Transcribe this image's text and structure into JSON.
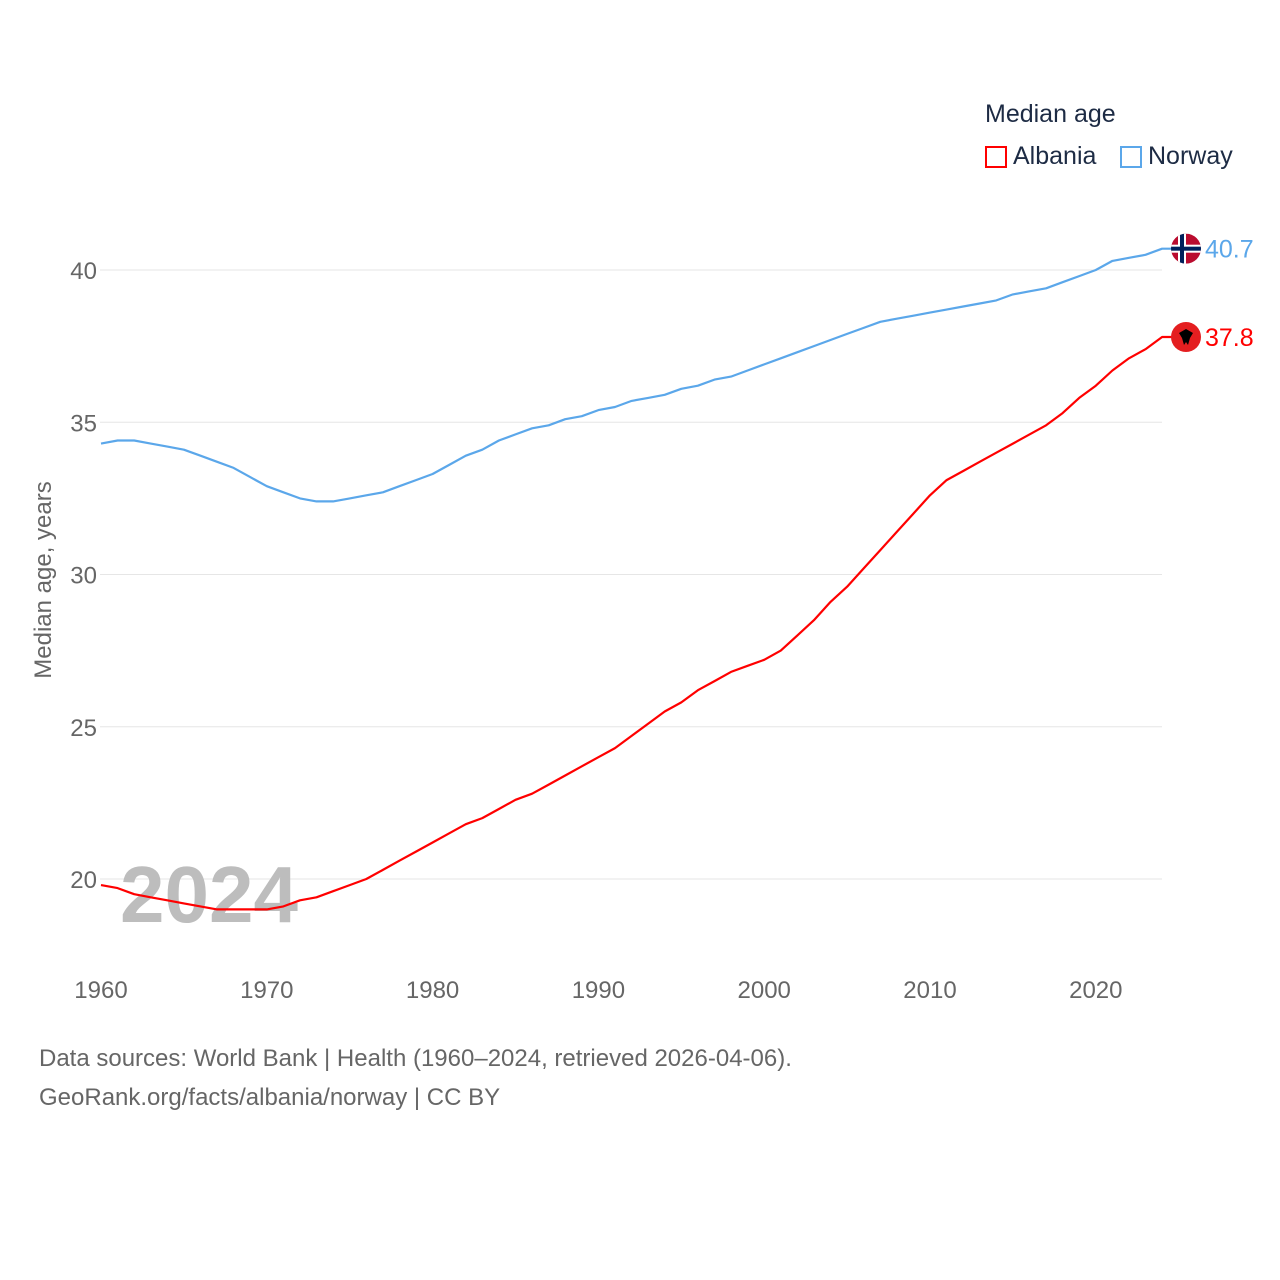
{
  "chart_data": {
    "type": "line",
    "title": "",
    "ylabel": "Median age, years",
    "xlabel": "",
    "xlim": [
      1960,
      2024
    ],
    "ylim": [
      17.5,
      41.5
    ],
    "grid": true,
    "x_ticks": [
      "1960",
      "1970",
      "1980",
      "1990",
      "2000",
      "2010",
      "2020"
    ],
    "y_ticks": [
      "20",
      "25",
      "30",
      "35",
      "40"
    ],
    "watermark_year": "2024",
    "legend": {
      "title": "Median age",
      "placement": "top-right"
    },
    "x": [
      1960,
      1961,
      1962,
      1963,
      1964,
      1965,
      1966,
      1967,
      1968,
      1969,
      1970,
      1971,
      1972,
      1973,
      1974,
      1975,
      1976,
      1977,
      1978,
      1979,
      1980,
      1981,
      1982,
      1983,
      1984,
      1985,
      1986,
      1987,
      1988,
      1989,
      1990,
      1991,
      1992,
      1993,
      1994,
      1995,
      1996,
      1997,
      1998,
      1999,
      2000,
      2001,
      2002,
      2003,
      2004,
      2005,
      2006,
      2007,
      2008,
      2009,
      2010,
      2011,
      2012,
      2013,
      2014,
      2015,
      2016,
      2017,
      2018,
      2019,
      2020,
      2021,
      2022,
      2023,
      2024
    ],
    "series": [
      {
        "name": "Albania",
        "color": "#ff0000",
        "end_label": "37.8",
        "flag": "albania-flag",
        "values": [
          19.8,
          19.7,
          19.5,
          19.4,
          19.3,
          19.2,
          19.1,
          19.0,
          19.0,
          19.0,
          19.0,
          19.1,
          19.3,
          19.4,
          19.6,
          19.8,
          20.0,
          20.3,
          20.6,
          20.9,
          21.2,
          21.5,
          21.8,
          22.0,
          22.3,
          22.6,
          22.8,
          23.1,
          23.4,
          23.7,
          24.0,
          24.3,
          24.7,
          25.1,
          25.5,
          25.8,
          26.2,
          26.5,
          26.8,
          27.0,
          27.2,
          27.5,
          28.0,
          28.5,
          29.1,
          29.6,
          30.2,
          30.8,
          31.4,
          32.0,
          32.6,
          33.1,
          33.4,
          33.7,
          34.0,
          34.3,
          34.6,
          34.9,
          35.3,
          35.8,
          36.2,
          36.7,
          37.1,
          37.4,
          37.8
        ]
      },
      {
        "name": "Norway",
        "color": "#5ba7ea",
        "end_label": "40.7",
        "flag": "norway-flag",
        "values": [
          34.3,
          34.4,
          34.4,
          34.3,
          34.2,
          34.1,
          33.9,
          33.7,
          33.5,
          33.2,
          32.9,
          32.7,
          32.5,
          32.4,
          32.4,
          32.5,
          32.6,
          32.7,
          32.9,
          33.1,
          33.3,
          33.6,
          33.9,
          34.1,
          34.4,
          34.6,
          34.8,
          34.9,
          35.1,
          35.2,
          35.4,
          35.5,
          35.7,
          35.8,
          35.9,
          36.1,
          36.2,
          36.4,
          36.5,
          36.7,
          36.9,
          37.1,
          37.3,
          37.5,
          37.7,
          37.9,
          38.1,
          38.3,
          38.4,
          38.5,
          38.6,
          38.7,
          38.8,
          38.9,
          39.0,
          39.2,
          39.3,
          39.4,
          39.6,
          39.8,
          40.0,
          40.3,
          40.4,
          40.5,
          40.7
        ]
      }
    ]
  },
  "footer": {
    "sources": "Data sources: World Bank | Health (1960–2024, retrieved 2026-04-06).",
    "credit": "GeoRank.org/facts/albania/norway | CC BY"
  }
}
